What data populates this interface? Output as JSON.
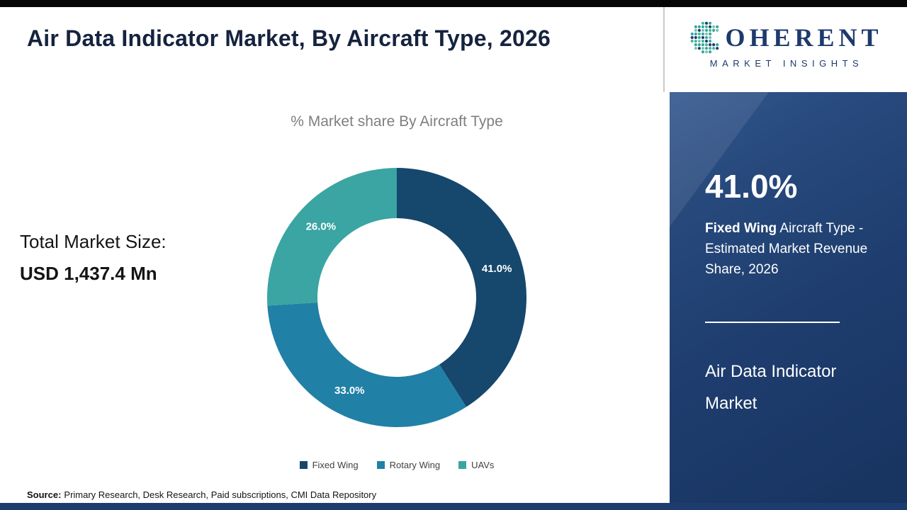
{
  "header": {
    "title": "Air Data Indicator Market, By Aircraft Type, 2026"
  },
  "logo": {
    "mark": "dotted-c-globe",
    "name_rest": "OHERENT",
    "tagline": "MARKET INSIGHTS"
  },
  "total": {
    "label": "Total Market Size:",
    "value": "USD 1,437.4 Mn"
  },
  "chart_data": {
    "type": "pie",
    "subtype": "donut",
    "title": "% Market share By Aircraft Type",
    "categories": [
      "Fixed Wing",
      "Rotary Wing",
      "UAVs"
    ],
    "values": [
      41.0,
      33.0,
      26.0
    ],
    "labels": [
      "41.0%",
      "33.0%",
      "26.0%"
    ],
    "colors": [
      "#16476c",
      "#2180a6",
      "#3aa5a2"
    ],
    "start_angle_deg": 0,
    "direction": "clockwise",
    "inner_radius_ratio": 0.61,
    "legend_position": "bottom"
  },
  "sidebar": {
    "highlight_value": "41.0%",
    "highlight_bold": "Fixed Wing",
    "highlight_rest": " Aircraft Type - Estimated Market Revenue Share, 2026",
    "market_name": "Air Data Indicator Market",
    "panel_color": "#1e3d6e"
  },
  "footer": {
    "source_label": "Source:",
    "source_text": "Primary Research, Desk Research, Paid subscriptions, CMI Data Repository"
  }
}
